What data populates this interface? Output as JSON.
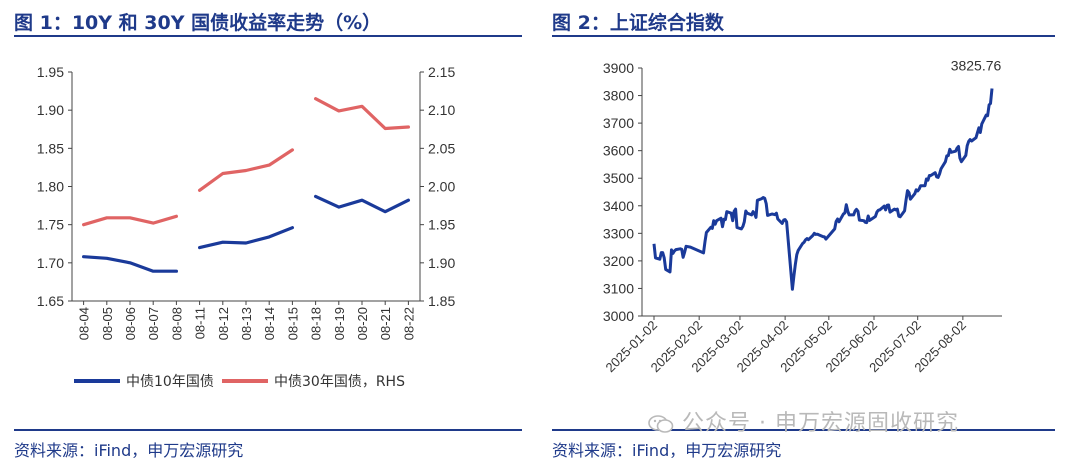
{
  "left": {
    "title": "图 1：10Y 和 30Y 国债收益率走势（%）",
    "source": "资料来源：iFind，申万宏源研究",
    "legend": [
      {
        "label": "中债10年国债",
        "color": "#1a3a9a"
      },
      {
        "label": "中债30年国债，RHS",
        "color": "#e06464"
      }
    ]
  },
  "right": {
    "title": "图 2：上证综合指数",
    "source": "资料来源：iFind，申万宏源研究",
    "annotation": "3825.76"
  },
  "watermark": "公众号 · 申万宏源固收研究",
  "chart_data": [
    {
      "type": "line",
      "categories": [
        "08-04",
        "08-05",
        "08-06",
        "08-07",
        "08-08",
        "08-11",
        "08-12",
        "08-13",
        "08-14",
        "08-15",
        "08-18",
        "08-19",
        "08-20",
        "08-21",
        "08-22"
      ],
      "y_left": {
        "ylim": [
          1.65,
          1.95
        ],
        "ticks": [
          "1.65",
          "1.70",
          "1.75",
          "1.80",
          "1.85",
          "1.90",
          "1.95"
        ]
      },
      "y_right": {
        "ylim": [
          1.85,
          2.15
        ],
        "ticks": [
          "1.85",
          "1.90",
          "1.95",
          "2.00",
          "2.05",
          "2.10",
          "2.15"
        ]
      },
      "series": [
        {
          "name": "中债10年国债",
          "axis": "left",
          "color": "#1a3a9a",
          "values": [
            1.708,
            1.706,
            1.7,
            1.689,
            1.689,
            1.72,
            1.727,
            1.726,
            1.734,
            1.746,
            1.787,
            1.773,
            1.782,
            1.767,
            1.782
          ]
        },
        {
          "name": "中债30年国债，RHS",
          "axis": "right",
          "color": "#e06464",
          "values": [
            1.95,
            1.959,
            1.959,
            1.952,
            1.961,
            1.995,
            2.017,
            2.021,
            2.028,
            2.048,
            2.115,
            2.099,
            2.105,
            2.076,
            2.078
          ]
        }
      ],
      "grid": false
    },
    {
      "type": "line",
      "ylim": [
        3000,
        3900
      ],
      "y_ticks": [
        "3000",
        "3100",
        "3200",
        "3300",
        "3400",
        "3500",
        "3600",
        "3700",
        "3800",
        "3900"
      ],
      "x_ticks": [
        "2025-01-02",
        "2025-02-02",
        "2025-03-02",
        "2025-04-02",
        "2025-05-02",
        "2025-06-02",
        "2025-07-02",
        "2025-08-02"
      ],
      "series": [
        {
          "color": "#1a3a9a",
          "points": [
            [
              "2025-01-02",
              3262
            ],
            [
              "2025-01-03",
              3211
            ],
            [
              "2025-01-06",
              3206
            ],
            [
              "2025-01-07",
              3230
            ],
            [
              "2025-01-08",
              3230
            ],
            [
              "2025-01-09",
              3211
            ],
            [
              "2025-01-10",
              3169
            ],
            [
              "2025-01-13",
              3160
            ],
            [
              "2025-01-14",
              3240
            ],
            [
              "2025-01-15",
              3227
            ],
            [
              "2025-01-16",
              3236
            ],
            [
              "2025-01-17",
              3241
            ],
            [
              "2025-01-20",
              3244
            ],
            [
              "2025-01-21",
              3242
            ],
            [
              "2025-01-22",
              3213
            ],
            [
              "2025-01-23",
              3231
            ],
            [
              "2025-01-24",
              3253
            ],
            [
              "2025-01-27",
              3250
            ],
            [
              "2025-02-05",
              3229
            ],
            [
              "2025-02-06",
              3270
            ],
            [
              "2025-02-07",
              3303
            ],
            [
              "2025-02-10",
              3322
            ],
            [
              "2025-02-11",
              3318
            ],
            [
              "2025-02-12",
              3346
            ],
            [
              "2025-02-13",
              3333
            ],
            [
              "2025-02-14",
              3346
            ],
            [
              "2025-02-17",
              3355
            ],
            [
              "2025-02-18",
              3324
            ],
            [
              "2025-02-19",
              3351
            ],
            [
              "2025-02-20",
              3350
            ],
            [
              "2025-02-21",
              3379
            ],
            [
              "2025-02-24",
              3373
            ],
            [
              "2025-02-25",
              3346
            ],
            [
              "2025-02-26",
              3380
            ],
            [
              "2025-02-27",
              3388
            ],
            [
              "2025-02-28",
              3321
            ],
            [
              "2025-03-03",
              3316
            ],
            [
              "2025-03-04",
              3325
            ],
            [
              "2025-03-05",
              3342
            ],
            [
              "2025-03-06",
              3381
            ],
            [
              "2025-03-07",
              3373
            ],
            [
              "2025-03-10",
              3367
            ],
            [
              "2025-03-11",
              3379
            ],
            [
              "2025-03-12",
              3372
            ],
            [
              "2025-03-13",
              3358
            ],
            [
              "2025-03-14",
              3420
            ],
            [
              "2025-03-17",
              3426
            ],
            [
              "2025-03-18",
              3430
            ],
            [
              "2025-03-19",
              3427
            ],
            [
              "2025-03-20",
              3408
            ],
            [
              "2025-03-21",
              3365
            ],
            [
              "2025-03-24",
              3370
            ],
            [
              "2025-03-25",
              3369
            ],
            [
              "2025-03-26",
              3368
            ],
            [
              "2025-03-27",
              3373
            ],
            [
              "2025-03-28",
              3352
            ],
            [
              "2025-03-31",
              3336
            ],
            [
              "2025-04-01",
              3348
            ],
            [
              "2025-04-02",
              3350
            ],
            [
              "2025-04-03",
              3342
            ],
            [
              "2025-04-07",
              3097
            ],
            [
              "2025-04-08",
              3145
            ],
            [
              "2025-04-09",
              3186
            ],
            [
              "2025-04-10",
              3223
            ],
            [
              "2025-04-11",
              3238
            ],
            [
              "2025-04-14",
              3263
            ],
            [
              "2025-04-15",
              3268
            ],
            [
              "2025-04-16",
              3276
            ],
            [
              "2025-04-17",
              3281
            ],
            [
              "2025-04-18",
              3277
            ],
            [
              "2025-04-21",
              3292
            ],
            [
              "2025-04-22",
              3300
            ],
            [
              "2025-04-23",
              3296
            ],
            [
              "2025-04-24",
              3297
            ],
            [
              "2025-04-25",
              3295
            ],
            [
              "2025-04-28",
              3288
            ],
            [
              "2025-04-29",
              3287
            ],
            [
              "2025-04-30",
              3279
            ],
            [
              "2025-05-06",
              3316
            ],
            [
              "2025-05-07",
              3343
            ],
            [
              "2025-05-08",
              3352
            ],
            [
              "2025-05-09",
              3342
            ],
            [
              "2025-05-12",
              3370
            ],
            [
              "2025-05-13",
              3374
            ],
            [
              "2025-05-14",
              3404
            ],
            [
              "2025-05-15",
              3380
            ],
            [
              "2025-05-16",
              3367
            ],
            [
              "2025-05-19",
              3367
            ],
            [
              "2025-05-20",
              3381
            ],
            [
              "2025-05-21",
              3387
            ],
            [
              "2025-05-22",
              3380
            ],
            [
              "2025-05-23",
              3348
            ],
            [
              "2025-05-26",
              3346
            ],
            [
              "2025-05-27",
              3340
            ],
            [
              "2025-05-28",
              3339
            ],
            [
              "2025-05-29",
              3363
            ],
            [
              "2025-05-30",
              3347
            ],
            [
              "2025-06-03",
              3361
            ],
            [
              "2025-06-04",
              3377
            ],
            [
              "2025-06-05",
              3384
            ],
            [
              "2025-06-06",
              3385
            ],
            [
              "2025-06-09",
              3399
            ],
            [
              "2025-06-10",
              3385
            ],
            [
              "2025-06-11",
              3402
            ],
            [
              "2025-06-12",
              3403
            ],
            [
              "2025-06-13",
              3377
            ],
            [
              "2025-06-16",
              3388
            ],
            [
              "2025-06-17",
              3385
            ],
            [
              "2025-06-18",
              3388
            ],
            [
              "2025-06-19",
              3362
            ],
            [
              "2025-06-20",
              3360
            ],
            [
              "2025-06-23",
              3382
            ],
            [
              "2025-06-24",
              3420
            ],
            [
              "2025-06-25",
              3455
            ],
            [
              "2025-06-26",
              3448
            ],
            [
              "2025-06-27",
              3424
            ],
            [
              "2025-06-30",
              3444
            ],
            [
              "2025-07-01",
              3458
            ],
            [
              "2025-07-02",
              3454
            ],
            [
              "2025-07-03",
              3461
            ],
            [
              "2025-07-04",
              3473
            ],
            [
              "2025-07-07",
              3473
            ],
            [
              "2025-07-08",
              3497
            ],
            [
              "2025-07-09",
              3493
            ],
            [
              "2025-07-10",
              3510
            ],
            [
              "2025-07-11",
              3510
            ],
            [
              "2025-07-14",
              3520
            ],
            [
              "2025-07-15",
              3505
            ],
            [
              "2025-07-16",
              3503
            ],
            [
              "2025-07-17",
              3516
            ],
            [
              "2025-07-18",
              3534
            ],
            [
              "2025-07-21",
              3560
            ],
            [
              "2025-07-22",
              3581
            ],
            [
              "2025-07-23",
              3582
            ],
            [
              "2025-07-24",
              3605
            ],
            [
              "2025-07-25",
              3594
            ],
            [
              "2025-07-28",
              3598
            ],
            [
              "2025-07-29",
              3609
            ],
            [
              "2025-07-30",
              3615
            ],
            [
              "2025-07-31",
              3573
            ],
            [
              "2025-08-01",
              3560
            ],
            [
              "2025-08-04",
              3583
            ],
            [
              "2025-08-05",
              3618
            ],
            [
              "2025-08-06",
              3634
            ],
            [
              "2025-08-07",
              3640
            ],
            [
              "2025-08-08",
              3635
            ],
            [
              "2025-08-11",
              3647
            ],
            [
              "2025-08-12",
              3665
            ],
            [
              "2025-08-13",
              3683
            ],
            [
              "2025-08-14",
              3666
            ],
            [
              "2025-08-15",
              3697
            ],
            [
              "2025-08-18",
              3729
            ],
            [
              "2025-08-19",
              3727
            ],
            [
              "2025-08-20",
              3766
            ],
            [
              "2025-08-21",
              3771
            ],
            [
              "2025-08-22",
              3825.76
            ]
          ]
        }
      ],
      "grid": false
    }
  ]
}
